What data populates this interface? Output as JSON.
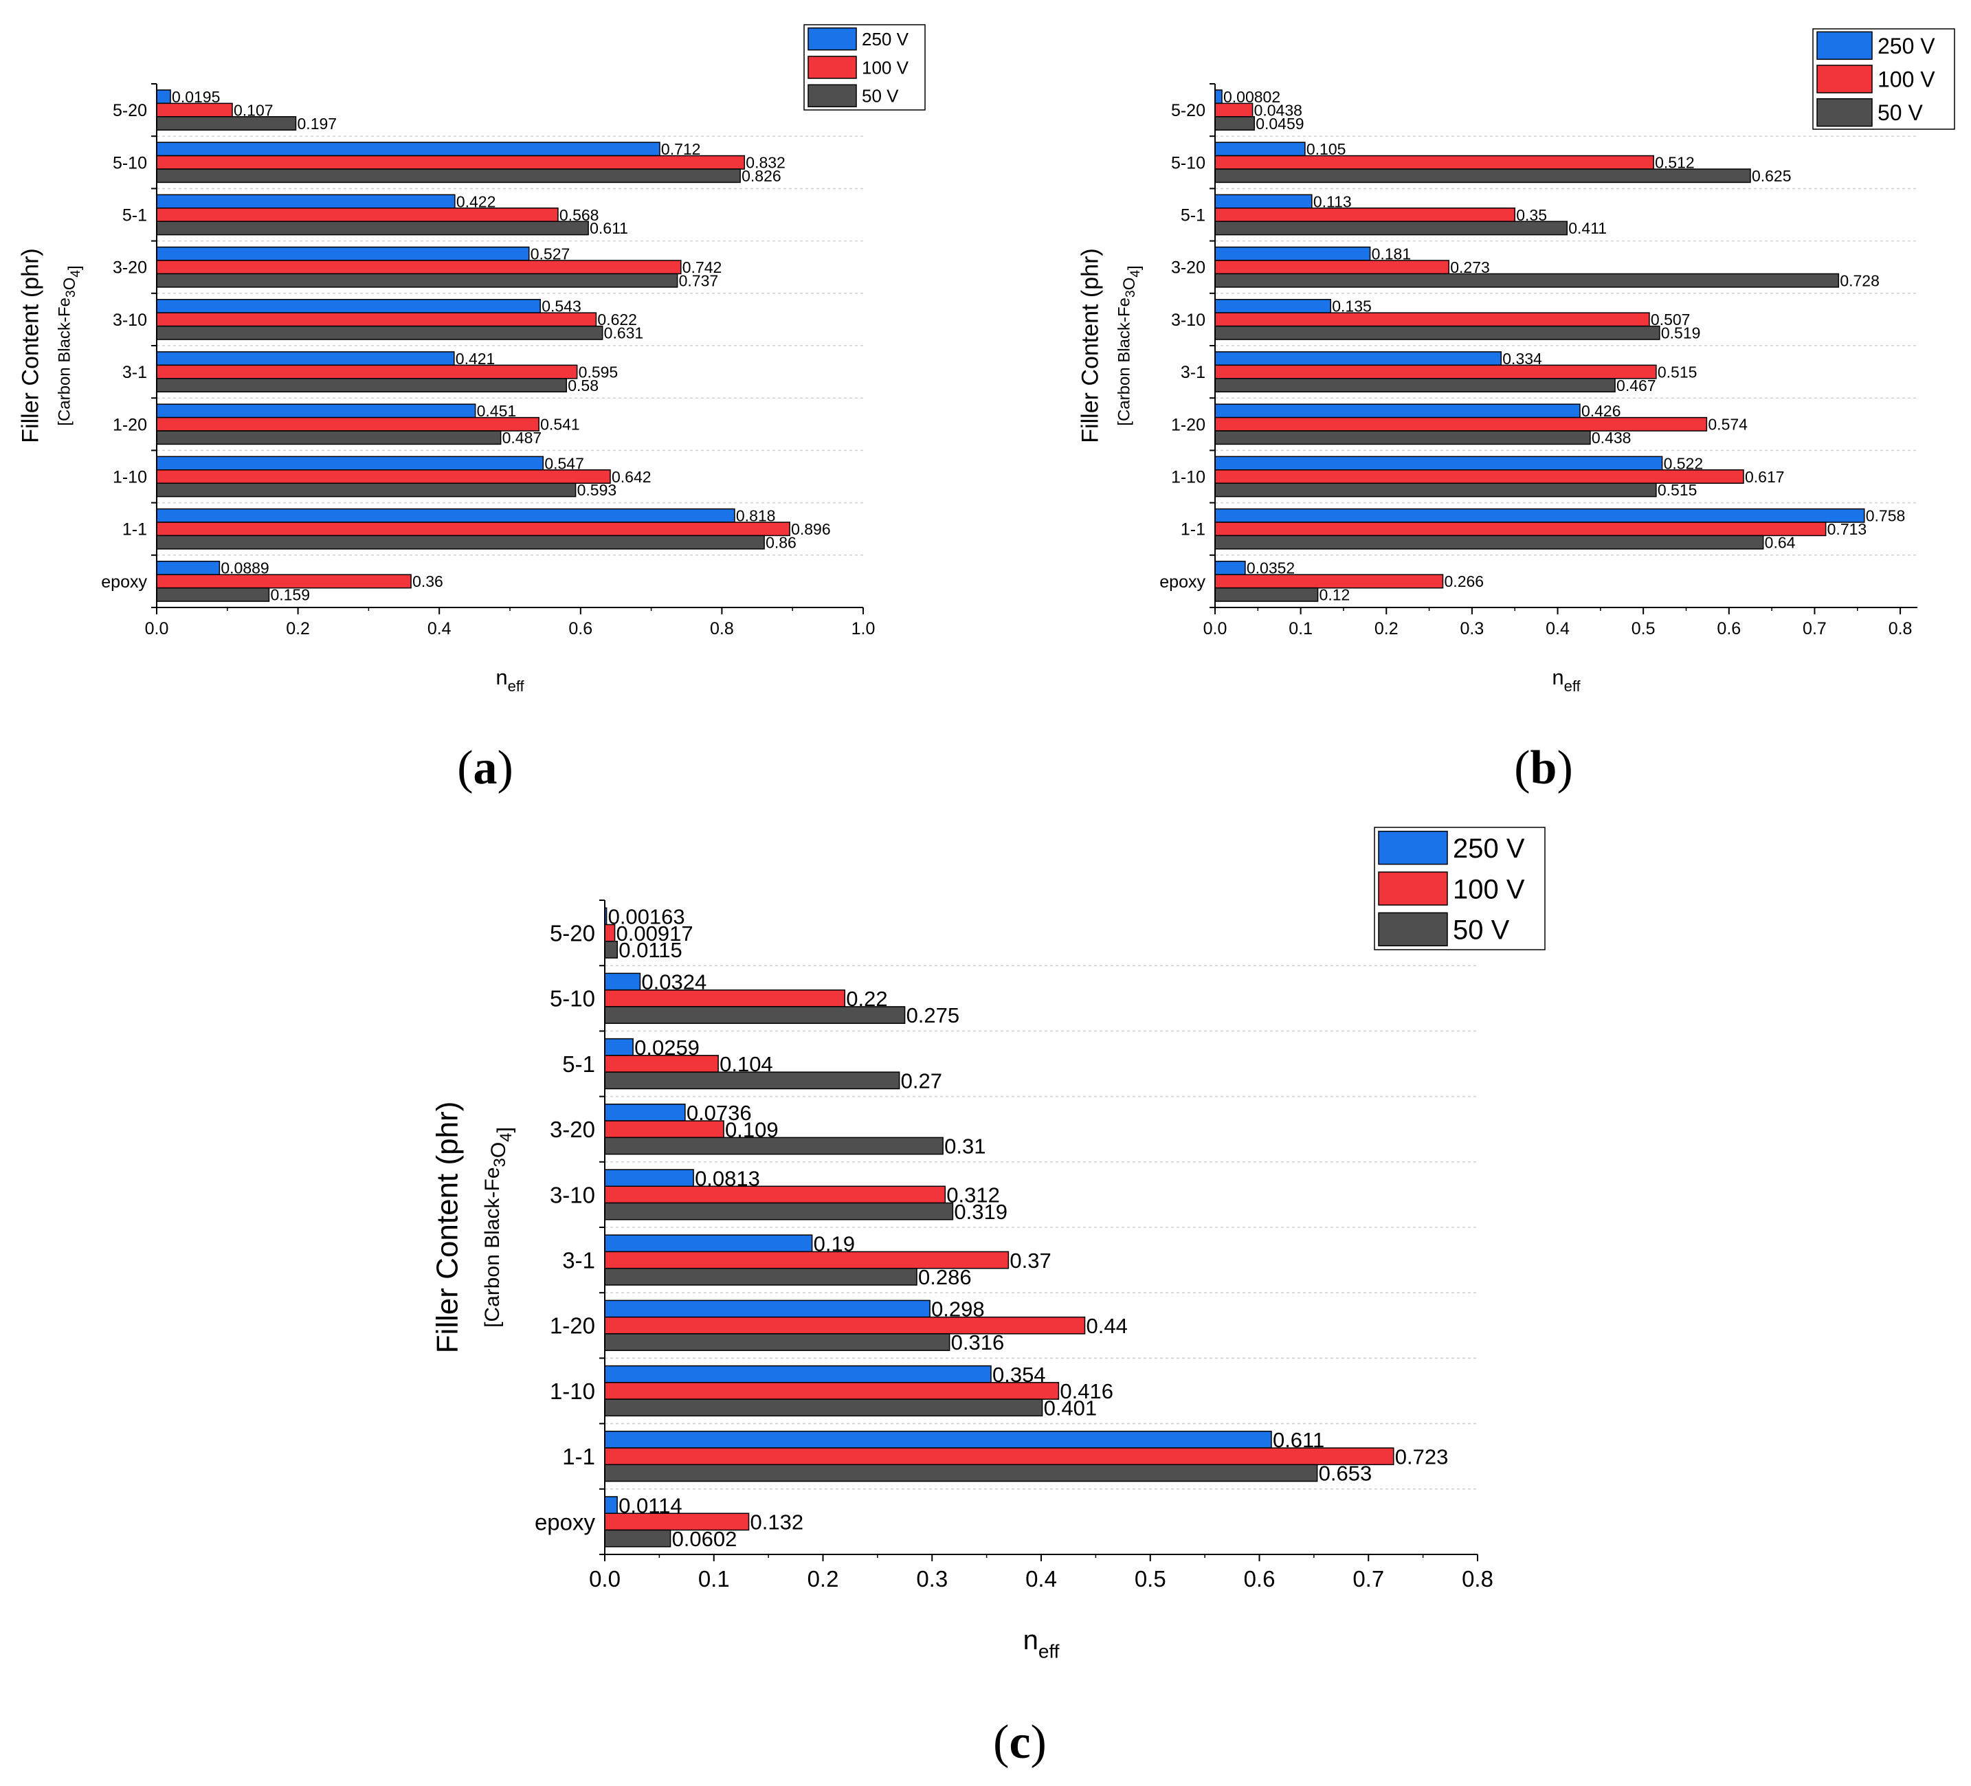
{
  "colors": {
    "250 V": "#1a73e8",
    "100 V": "#f2353b",
    "50 V": "#4f4f4f"
  },
  "chart_data": [
    {
      "type": "bar",
      "orientation": "horizontal",
      "panel_label": "(a)",
      "ylabel_main": "Filler Content (phr)",
      "ylabel_sub": "[Carbon Black-Fe3O4]",
      "xlabel": "n",
      "xlabel_sub": "eff",
      "xlim": [
        0,
        1.0
      ],
      "xticks": [
        "0.0",
        "0.2",
        "0.4",
        "0.6",
        "0.8",
        "1.0"
      ],
      "xtick_values": [
        0,
        0.2,
        0.4,
        0.6,
        0.8,
        1.0
      ],
      "categories": [
        "5-20",
        "5-10",
        "5-1",
        "3-20",
        "3-10",
        "3-1",
        "1-20",
        "1-10",
        "1-1",
        "epoxy"
      ],
      "legend": [
        "250 V",
        "100 V",
        "50 V"
      ],
      "series": [
        {
          "name": "250 V",
          "values": [
            0.0195,
            0.712,
            0.422,
            0.527,
            0.543,
            0.421,
            0.451,
            0.547,
            0.818,
            0.0889
          ],
          "labels": [
            "0.0195",
            "0.712",
            "0.422",
            "0.527",
            "0.543",
            "0.421",
            "0.451",
            "0.547",
            "0.818",
            "0.0889"
          ]
        },
        {
          "name": "100 V",
          "values": [
            0.107,
            0.832,
            0.568,
            0.742,
            0.622,
            0.595,
            0.541,
            0.642,
            0.896,
            0.36
          ],
          "labels": [
            "0.107",
            "0.832",
            "0.568",
            "0.742",
            "0.622",
            "0.595",
            "0.541",
            "0.642",
            "0.896",
            "0.36"
          ]
        },
        {
          "name": "50 V",
          "values": [
            0.197,
            0.826,
            0.611,
            0.737,
            0.631,
            0.58,
            0.487,
            0.593,
            0.86,
            0.159
          ],
          "labels": [
            "0.197",
            "0.826",
            "0.611",
            "0.737",
            "0.631",
            "0.58",
            "0.487",
            "0.593",
            "0.86",
            "0.159"
          ]
        }
      ]
    },
    {
      "type": "bar",
      "orientation": "horizontal",
      "panel_label": "(b)",
      "ylabel_main": "Filler Content (phr)",
      "ylabel_sub": "[Carbon Black-Fe3O4]",
      "xlabel": "n",
      "xlabel_sub": "eff",
      "xlim": [
        0,
        0.82
      ],
      "xticks": [
        "0.0",
        "0.1",
        "0.2",
        "0.3",
        "0.4",
        "0.5",
        "0.6",
        "0.7",
        "0.8"
      ],
      "xtick_values": [
        0,
        0.1,
        0.2,
        0.3,
        0.4,
        0.5,
        0.6,
        0.7,
        0.8
      ],
      "categories": [
        "5-20",
        "5-10",
        "5-1",
        "3-20",
        "3-10",
        "3-1",
        "1-20",
        "1-10",
        "1-1",
        "epoxy"
      ],
      "legend": [
        "250 V",
        "100 V",
        "50 V"
      ],
      "series": [
        {
          "name": "250 V",
          "values": [
            0.00802,
            0.105,
            0.113,
            0.181,
            0.135,
            0.334,
            0.426,
            0.522,
            0.758,
            0.0352
          ],
          "labels": [
            "0.00802",
            "0.105",
            "0.113",
            "0.181",
            "0.135",
            "0.334",
            "0.426",
            "0.522",
            "0.758",
            "0.0352"
          ]
        },
        {
          "name": "100 V",
          "values": [
            0.0438,
            0.512,
            0.35,
            0.273,
            0.507,
            0.515,
            0.574,
            0.617,
            0.713,
            0.266
          ],
          "labels": [
            "0.0438",
            "0.512",
            "0.35",
            "0.273",
            "0.507",
            "0.515",
            "0.574",
            "0.617",
            "0.713",
            "0.266"
          ]
        },
        {
          "name": "50 V",
          "values": [
            0.0459,
            0.625,
            0.411,
            0.728,
            0.519,
            0.467,
            0.438,
            0.515,
            0.64,
            0.12
          ],
          "labels": [
            "0.0459",
            "0.625",
            "0.411",
            "0.728",
            "0.519",
            "0.467",
            "0.438",
            "0.515",
            "0.64",
            "0.12"
          ]
        }
      ]
    },
    {
      "type": "bar",
      "orientation": "horizontal",
      "panel_label": "(c)",
      "ylabel_main": "Filler Content (phr)",
      "ylabel_sub": "[Carbon Black-Fe3O4]",
      "xlabel": "n",
      "xlabel_sub": "eff",
      "xlim": [
        0,
        0.8
      ],
      "xticks": [
        "0.0",
        "0.1",
        "0.2",
        "0.3",
        "0.4",
        "0.5",
        "0.6",
        "0.7",
        "0.8"
      ],
      "xtick_values": [
        0,
        0.1,
        0.2,
        0.3,
        0.4,
        0.5,
        0.6,
        0.7,
        0.8
      ],
      "categories": [
        "5-20",
        "5-10",
        "5-1",
        "3-20",
        "3-10",
        "3-1",
        "1-20",
        "1-10",
        "1-1",
        "epoxy"
      ],
      "legend": [
        "250 V",
        "100 V",
        "50 V"
      ],
      "series": [
        {
          "name": "250 V",
          "values": [
            0.00163,
            0.0324,
            0.0259,
            0.0736,
            0.0813,
            0.19,
            0.298,
            0.354,
            0.611,
            0.0114
          ],
          "labels": [
            "0.00163",
            "0.0324",
            "0.0259",
            "0.0736",
            "0.0813",
            "0.19",
            "0.298",
            "0.354",
            "0.611",
            "0.0114"
          ]
        },
        {
          "name": "100 V",
          "values": [
            0.00917,
            0.22,
            0.104,
            0.109,
            0.312,
            0.37,
            0.44,
            0.416,
            0.723,
            0.132
          ],
          "labels": [
            "0.00917",
            "0.22",
            "0.104",
            "0.109",
            "0.312",
            "0.37",
            "0.44",
            "0.416",
            "0.723",
            "0.132"
          ]
        },
        {
          "name": "50 V",
          "values": [
            0.0115,
            0.275,
            0.27,
            0.31,
            0.319,
            0.286,
            0.316,
            0.401,
            0.653,
            0.0602
          ],
          "labels": [
            "0.0115",
            "0.275",
            "0.27",
            "0.31",
            "0.319",
            "0.286",
            "0.316",
            "0.401",
            "0.653",
            "0.0602"
          ]
        }
      ]
    }
  ]
}
